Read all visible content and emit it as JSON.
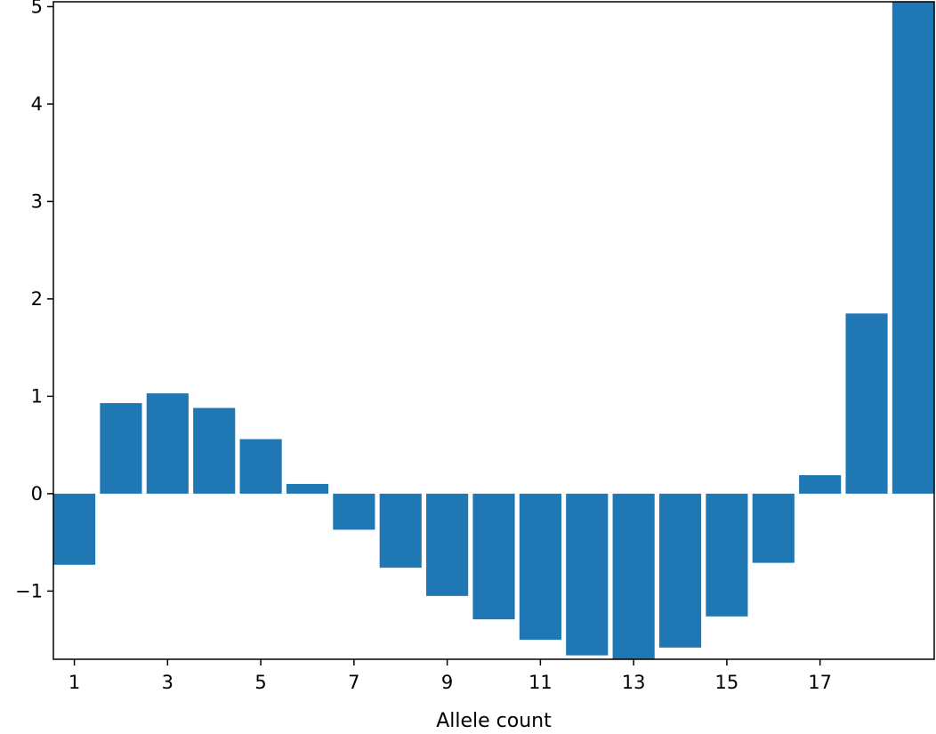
{
  "chart_data": {
    "type": "bar",
    "title": "",
    "xlabel": "Allele count",
    "ylabel": "",
    "x": [
      1,
      2,
      3,
      4,
      5,
      6,
      7,
      8,
      9,
      10,
      11,
      12,
      13,
      14,
      15,
      16,
      17,
      18,
      19
    ],
    "values": [
      -0.73,
      0.93,
      1.03,
      0.88,
      0.56,
      0.1,
      -0.37,
      -0.76,
      -1.05,
      -1.29,
      -1.5,
      -1.66,
      -1.7,
      -1.58,
      -1.26,
      -0.71,
      0.19,
      1.85,
      5.05
    ],
    "xticks": [
      "1",
      "3",
      "5",
      "7",
      "9",
      "11",
      "13",
      "15",
      "17"
    ],
    "yticks": [
      "−1",
      "0",
      "1",
      "2",
      "3",
      "4",
      "5"
    ],
    "ylim": [
      -1.7,
      5.05
    ],
    "xlim": [
      0.55,
      19.45
    ],
    "bar_color": "#1f77b4",
    "grid": false,
    "legend": "none"
  }
}
